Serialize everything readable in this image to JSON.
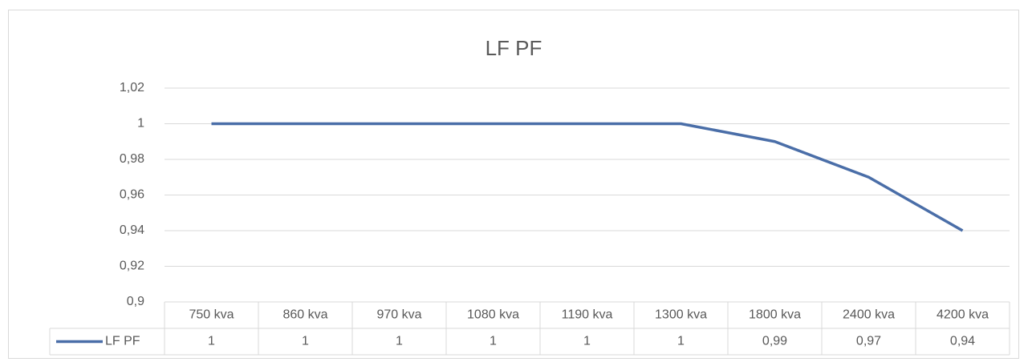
{
  "chart_data": {
    "type": "line",
    "title": "LF PF",
    "categories": [
      "750 kva",
      "860 kva",
      "970 kva",
      "1080 kva",
      "1190 kva",
      "1300 kva",
      "1800 kva",
      "2400 kva",
      "4200 kva"
    ],
    "series": [
      {
        "name": "LF PF",
        "color": "#4a6ea8",
        "values": [
          1,
          1,
          1,
          1,
          1,
          1,
          0.99,
          0.97,
          0.94
        ],
        "value_labels": [
          "1",
          "1",
          "1",
          "1",
          "1",
          "1",
          "0,99",
          "0,97",
          "0,94"
        ]
      }
    ],
    "ylim": [
      0.9,
      1.02
    ],
    "yticks": [
      {
        "value": 0.9,
        "label": "0,9"
      },
      {
        "value": 0.92,
        "label": "0,92"
      },
      {
        "value": 0.94,
        "label": "0,94"
      },
      {
        "value": 0.96,
        "label": "0,96"
      },
      {
        "value": 0.98,
        "label": "0,98"
      },
      1,
      {
        "value": 1.02,
        "label": "1,02"
      }
    ],
    "grid": true,
    "data_table": true
  }
}
